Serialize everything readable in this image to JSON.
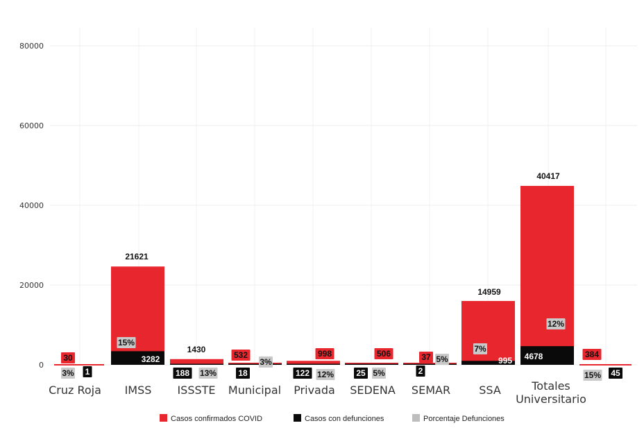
{
  "chart_data": {
    "type": "bar",
    "title": "",
    "xlabel": "",
    "ylabel": "",
    "ylim": [
      0,
      80000
    ],
    "yticks": [
      0,
      20000,
      40000,
      60000,
      80000
    ],
    "grid": true,
    "legend_position": "bottom",
    "categories": [
      "Cruz Roja",
      "IMSS",
      "ISSSTE",
      "Municipal",
      "Privada",
      "SEDENA",
      "SEMAR",
      "SSA",
      "Totales Universitario"
    ],
    "series": [
      {
        "name": "Casos confirmados COVID",
        "color": "#e8262d",
        "values": [
          30,
          21621,
          1430,
          532,
          998,
          506,
          37,
          14959,
          40417
        ],
        "labels": [
          "30",
          "21621",
          "1430",
          "532",
          "998",
          "506",
          "37",
          "14959",
          "40417"
        ]
      },
      {
        "name": "Casos con defunciones",
        "color": "#0a0a0a",
        "values": [
          1,
          3282,
          188,
          18,
          122,
          25,
          2,
          995,
          4678
        ],
        "labels": [
          "1",
          "3282",
          "188",
          "18",
          "122",
          "25",
          "2",
          "995",
          "4678"
        ]
      },
      {
        "name": "Porcentaje Defunciones",
        "color": "#bdbdbd",
        "values": [
          3,
          15,
          13,
          3,
          12,
          5,
          5,
          7,
          12
        ],
        "labels": [
          "3%",
          "15%",
          "13%",
          "3%",
          "12%",
          "5%",
          "5%",
          "7%",
          "12%"
        ]
      }
    ],
    "extra_labels": {
      "confirmed": "384",
      "deaths": "45",
      "percent": "15%"
    }
  }
}
